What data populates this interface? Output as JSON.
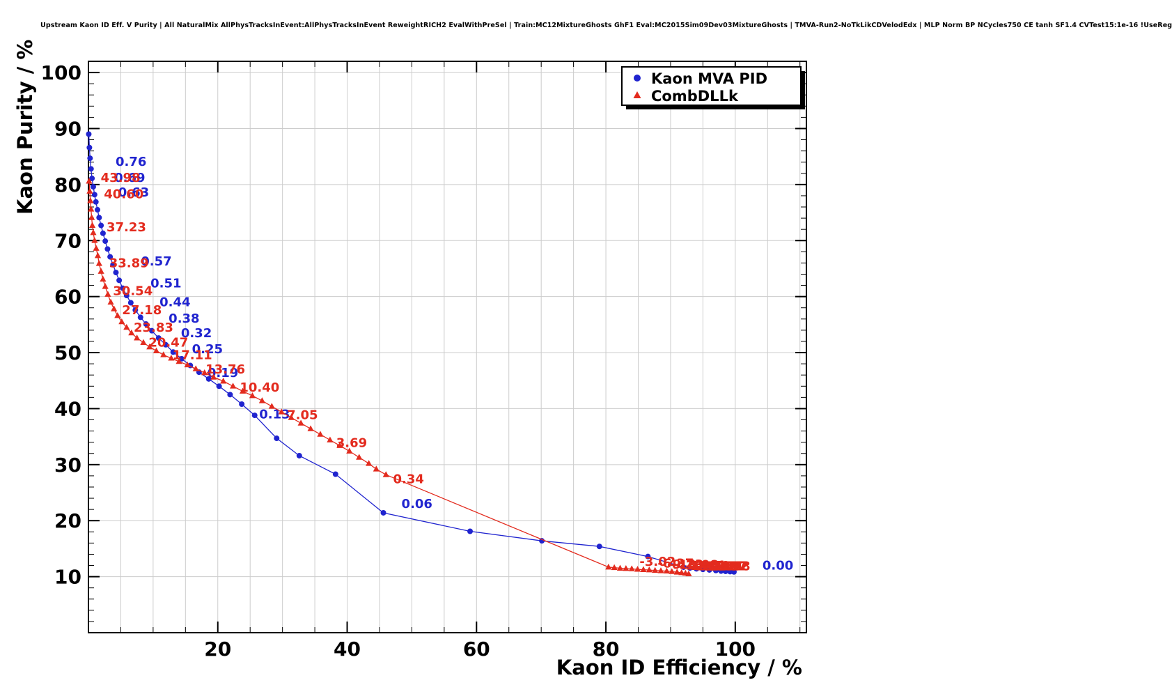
{
  "header": {
    "title": "Upstream Kaon ID Eff. V Purity | All NaturalMix AllPhysTracksInEvent:AllPhysTracksInEvent ReweightRICH2 EvalWithPreSel | Train:MC12MixtureGhosts GhF1 Eval:MC2015Sim09Dev03MixtureGhosts | TMVA-Run2-NoTkLikCDVelodEdx | MLP Norm BP NCycles750 CE tanh SF1.4 CVTest15:1e-16 !UseReg"
  },
  "chart_data": {
    "type": "scatter",
    "title": "Upstream Kaon ID Eff. V Purity",
    "xlabel": "Kaon ID Efficiency / %",
    "ylabel": "Kaon Purity / %",
    "xlim": [
      0,
      111
    ],
    "ylim": [
      0,
      102
    ],
    "x_ticks": [
      20,
      40,
      60,
      80,
      100
    ],
    "y_ticks": [
      10,
      20,
      30,
      40,
      50,
      60,
      70,
      80,
      90,
      100
    ],
    "x_minor_step": 5,
    "y_minor_step": 2,
    "grid": {
      "x_step": 5,
      "y_step": 10,
      "color": "#cccccc"
    },
    "legend": {
      "position": "top-right",
      "entries": [
        {
          "label": "Kaon MVA PID",
          "marker": "circle",
          "color": "#2024cf"
        },
        {
          "label": "CombDLLk",
          "marker": "triangle",
          "color": "#e32b1e"
        }
      ]
    },
    "series": [
      {
        "name": "Kaon MVA PID",
        "marker": "circle",
        "color": "#2024cf",
        "points": [
          [
            0.05,
            89.0
          ],
          [
            0.15,
            86.6
          ],
          [
            0.25,
            84.7
          ],
          [
            0.4,
            82.8
          ],
          [
            0.55,
            81.1
          ],
          [
            0.75,
            79.6
          ],
          [
            0.95,
            78.2
          ],
          [
            1.15,
            76.9
          ],
          [
            1.4,
            75.5
          ],
          [
            1.65,
            74.1
          ],
          [
            1.95,
            72.7
          ],
          [
            2.25,
            71.3
          ],
          [
            2.6,
            69.9
          ],
          [
            2.95,
            68.5
          ],
          [
            3.35,
            67.1
          ],
          [
            3.8,
            65.7
          ],
          [
            4.25,
            64.3
          ],
          [
            4.75,
            62.9
          ],
          [
            5.3,
            61.5
          ],
          [
            5.9,
            60.2
          ],
          [
            6.55,
            58.9
          ],
          [
            7.25,
            57.6
          ],
          [
            8.05,
            56.3
          ],
          [
            8.9,
            55.1
          ],
          [
            9.8,
            53.9
          ],
          [
            10.85,
            52.6
          ],
          [
            11.95,
            51.4
          ],
          [
            13.1,
            50.1
          ],
          [
            14.4,
            48.9
          ],
          [
            15.75,
            47.7
          ],
          [
            17.1,
            46.5
          ],
          [
            18.6,
            45.3
          ],
          [
            20.2,
            44.0
          ],
          [
            21.9,
            42.5
          ],
          [
            23.7,
            40.8
          ],
          [
            25.7,
            38.8
          ],
          [
            29.1,
            34.7
          ],
          [
            32.6,
            31.6
          ],
          [
            38.2,
            28.3
          ],
          [
            45.6,
            21.4
          ],
          [
            59.0,
            18.1
          ],
          [
            70.1,
            16.4
          ],
          [
            79.0,
            15.4
          ],
          [
            86.5,
            13.6
          ],
          [
            92.0,
            11.7
          ],
          [
            93.0,
            11.55
          ],
          [
            94.0,
            11.4
          ],
          [
            95.0,
            11.3
          ],
          [
            96.0,
            11.2
          ],
          [
            97.0,
            11.1
          ],
          [
            97.8,
            11.0
          ],
          [
            98.5,
            10.95
          ],
          [
            99.2,
            10.9
          ],
          [
            99.8,
            10.85
          ]
        ],
        "point_labels": [
          {
            "text": "0.76",
            "x": 4.2,
            "y": 84.1
          },
          {
            "text": "0.69",
            "x": 4.0,
            "y": 81.2
          },
          {
            "text": "0.63",
            "x": 4.6,
            "y": 78.6
          },
          {
            "text": "0.57",
            "x": 8.1,
            "y": 66.3
          },
          {
            "text": "0.51",
            "x": 9.6,
            "y": 62.4
          },
          {
            "text": "0.44",
            "x": 11.0,
            "y": 59.0
          },
          {
            "text": "0.38",
            "x": 12.4,
            "y": 56.1
          },
          {
            "text": "0.32",
            "x": 14.3,
            "y": 53.5
          },
          {
            "text": "0.25",
            "x": 16.0,
            "y": 50.6
          },
          {
            "text": "0.19",
            "x": 18.4,
            "y": 46.4
          },
          {
            "text": "0.13",
            "x": 26.4,
            "y": 39.0
          },
          {
            "text": "0.06",
            "x": 48.4,
            "y": 23.0
          },
          {
            "text": "0.00",
            "x": 104.2,
            "y": 12.0
          }
        ]
      },
      {
        "name": "CombDLLk",
        "marker": "triangle",
        "color": "#e32b1e",
        "points": [
          [
            0.1,
            80.6
          ],
          [
            0.2,
            78.8
          ],
          [
            0.3,
            77.1
          ],
          [
            0.4,
            75.6
          ],
          [
            0.5,
            74.1
          ],
          [
            0.6,
            72.7
          ],
          [
            0.75,
            71.4
          ],
          [
            0.95,
            70.0
          ],
          [
            1.2,
            68.6
          ],
          [
            1.45,
            67.3
          ],
          [
            1.65,
            65.9
          ],
          [
            1.95,
            64.5
          ],
          [
            2.25,
            63.1
          ],
          [
            2.6,
            61.8
          ],
          [
            3.0,
            60.4
          ],
          [
            3.45,
            59.0
          ],
          [
            3.95,
            57.8
          ],
          [
            4.5,
            56.6
          ],
          [
            5.15,
            55.5
          ],
          [
            5.9,
            54.5
          ],
          [
            6.65,
            53.5
          ],
          [
            7.5,
            52.6
          ],
          [
            8.5,
            51.8
          ],
          [
            9.45,
            51.0
          ],
          [
            10.5,
            50.3
          ],
          [
            11.6,
            49.6
          ],
          [
            12.8,
            49.0
          ],
          [
            14.0,
            48.4
          ],
          [
            15.3,
            47.8
          ],
          [
            16.6,
            47.1
          ],
          [
            17.95,
            46.4
          ],
          [
            19.35,
            45.6
          ],
          [
            20.85,
            44.9
          ],
          [
            22.35,
            44.0
          ],
          [
            23.85,
            43.1
          ],
          [
            25.35,
            42.3
          ],
          [
            26.85,
            41.4
          ],
          [
            28.35,
            40.4
          ],
          [
            29.85,
            39.4
          ],
          [
            31.35,
            38.4
          ],
          [
            32.85,
            37.4
          ],
          [
            34.35,
            36.4
          ],
          [
            35.85,
            35.4
          ],
          [
            37.35,
            34.4
          ],
          [
            38.85,
            33.4
          ],
          [
            40.35,
            32.4
          ],
          [
            41.85,
            31.3
          ],
          [
            43.35,
            30.2
          ],
          [
            44.5,
            29.2
          ],
          [
            46.0,
            28.2
          ],
          [
            80.4,
            11.7
          ],
          [
            81.3,
            11.6
          ],
          [
            82.2,
            11.5
          ],
          [
            83.1,
            11.45
          ],
          [
            84.0,
            11.4
          ],
          [
            84.9,
            11.3
          ],
          [
            85.8,
            11.25
          ],
          [
            86.7,
            11.2
          ],
          [
            87.6,
            11.1
          ],
          [
            88.5,
            11.05
          ],
          [
            89.4,
            11.0
          ],
          [
            90.2,
            10.9
          ],
          [
            91.0,
            10.8
          ],
          [
            91.7,
            10.7
          ],
          [
            92.3,
            10.6
          ],
          [
            92.8,
            10.5
          ]
        ],
        "point_labels": [
          {
            "text": "43.98",
            "x": 1.9,
            "y": 81.2
          },
          {
            "text": "40.60",
            "x": 2.4,
            "y": 78.3
          },
          {
            "text": "37.23",
            "x": 2.8,
            "y": 72.4
          },
          {
            "text": "33.89",
            "x": 3.2,
            "y": 66.0
          },
          {
            "text": "30.54",
            "x": 3.8,
            "y": 61.0
          },
          {
            "text": "27.18",
            "x": 5.2,
            "y": 57.6
          },
          {
            "text": "23.83",
            "x": 7.0,
            "y": 54.5
          },
          {
            "text": "20.47",
            "x": 9.3,
            "y": 51.8
          },
          {
            "text": "17.11",
            "x": 13.0,
            "y": 49.6
          },
          {
            "text": "13.76",
            "x": 18.1,
            "y": 47.0
          },
          {
            "text": "10.40",
            "x": 23.4,
            "y": 43.8
          },
          {
            "text": "7.05",
            "x": 30.7,
            "y": 38.9
          },
          {
            "text": "3.69",
            "x": 38.3,
            "y": 33.9
          },
          {
            "text": "0.34",
            "x": 47.1,
            "y": 27.4
          },
          {
            "text": "-3.02",
            "x": 85.2,
            "y": 12.7
          },
          {
            "text": "-6.37",
            "x": 88.0,
            "y": 12.4
          },
          {
            "text": "-9.73",
            "x": 89.5,
            "y": 12.2
          },
          {
            "text": "-13.08",
            "x": 90.5,
            "y": 12.1
          },
          {
            "text": "-16.44",
            "x": 91.5,
            "y": 12.0
          },
          {
            "text": "-19.79",
            "x": 92.3,
            "y": 11.95
          },
          {
            "text": "-23.15",
            "x": 93.0,
            "y": 11.9
          },
          {
            "text": "-26.50",
            "x": 93.5,
            "y": 11.9
          },
          {
            "text": "-29.86",
            "x": 94.0,
            "y": 11.9
          },
          {
            "text": "-33.21",
            "x": 94.4,
            "y": 11.9
          },
          {
            "text": "-36.57",
            "x": 94.8,
            "y": 11.85
          },
          {
            "text": "-39.92",
            "x": 95.1,
            "y": 11.85
          },
          {
            "text": "-43.28",
            "x": 95.4,
            "y": 11.85
          }
        ]
      }
    ]
  }
}
